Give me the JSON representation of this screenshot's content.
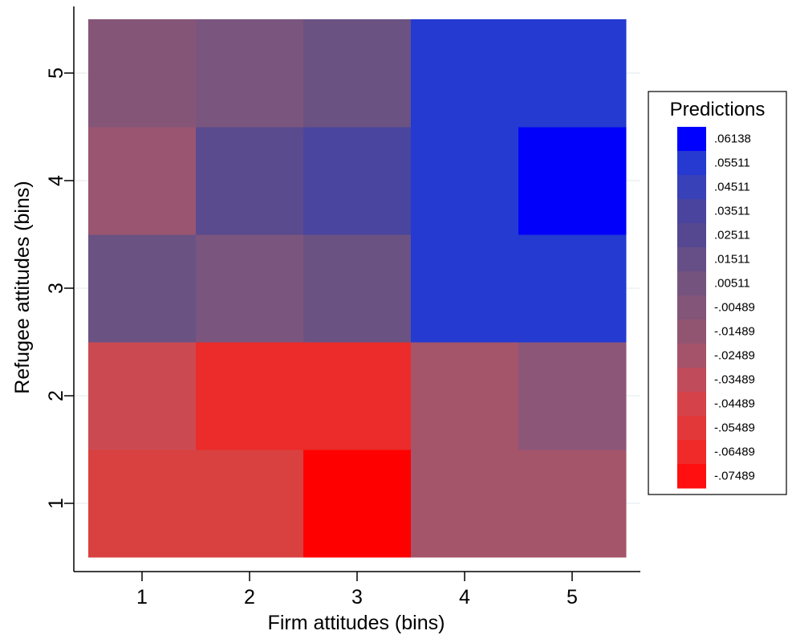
{
  "chart_data": {
    "type": "heatmap",
    "xlabel": "Firm attitudes (bins)",
    "ylabel": "Refugee attitudes (bins)",
    "x_categories": [
      "1",
      "2",
      "3",
      "4",
      "5"
    ],
    "y_categories": [
      "1",
      "2",
      "3",
      "4",
      "5"
    ],
    "cells": [
      {
        "x": 1,
        "y": 1,
        "color": "#d8413f"
      },
      {
        "x": 2,
        "y": 1,
        "color": "#d8413f"
      },
      {
        "x": 3,
        "y": 1,
        "color": "#ff0000"
      },
      {
        "x": 4,
        "y": 1,
        "color": "#a4556a"
      },
      {
        "x": 5,
        "y": 1,
        "color": "#a4556a"
      },
      {
        "x": 1,
        "y": 2,
        "color": "#cb4a52"
      },
      {
        "x": 2,
        "y": 2,
        "color": "#eb2c2b"
      },
      {
        "x": 3,
        "y": 2,
        "color": "#eb2c2b"
      },
      {
        "x": 4,
        "y": 2,
        "color": "#a4556a"
      },
      {
        "x": 5,
        "y": 2,
        "color": "#8c5679"
      },
      {
        "x": 1,
        "y": 3,
        "color": "#6a5283"
      },
      {
        "x": 2,
        "y": 3,
        "color": "#7a557e"
      },
      {
        "x": 3,
        "y": 3,
        "color": "#6a5283"
      },
      {
        "x": 4,
        "y": 3,
        "color": "#243ad1"
      },
      {
        "x": 5,
        "y": 3,
        "color": "#243ad1"
      },
      {
        "x": 1,
        "y": 4,
        "color": "#9a5570"
      },
      {
        "x": 2,
        "y": 4,
        "color": "#5a4a8e"
      },
      {
        "x": 3,
        "y": 4,
        "color": "#4a459e"
      },
      {
        "x": 4,
        "y": 4,
        "color": "#243ad1"
      },
      {
        "x": 5,
        "y": 4,
        "color": "#0000fb"
      },
      {
        "x": 1,
        "y": 5,
        "color": "#855578"
      },
      {
        "x": 2,
        "y": 5,
        "color": "#7a557e"
      },
      {
        "x": 3,
        "y": 5,
        "color": "#6a5283"
      },
      {
        "x": 4,
        "y": 5,
        "color": "#243ad1"
      },
      {
        "x": 5,
        "y": 5,
        "color": "#243ad1"
      }
    ],
    "legend": {
      "title": "Predictions",
      "position": "right",
      "entries": [
        {
          "label": ".06138",
          "color": "#0000ff"
        },
        {
          "label": ".05511",
          "color": "#2639d1"
        },
        {
          "label": ".04511",
          "color": "#3941b8"
        },
        {
          "label": ".03511",
          "color": "#4a449f"
        },
        {
          "label": ".02511",
          "color": "#554891"
        },
        {
          "label": ".01511",
          "color": "#664f87"
        },
        {
          "label": ".00511",
          "color": "#75537f"
        },
        {
          "label": "-.00489",
          "color": "#835578"
        },
        {
          "label": "-.01489",
          "color": "#925571"
        },
        {
          "label": "-.02489",
          "color": "#a5536a"
        },
        {
          "label": "-.03489",
          "color": "#c04b5a"
        },
        {
          "label": "-.04489",
          "color": "#d6424a"
        },
        {
          "label": "-.05489",
          "color": "#e2383a"
        },
        {
          "label": "-.06489",
          "color": "#ef2a29"
        },
        {
          "label": "-.07489",
          "color": "#ff0f0f"
        }
      ]
    }
  }
}
